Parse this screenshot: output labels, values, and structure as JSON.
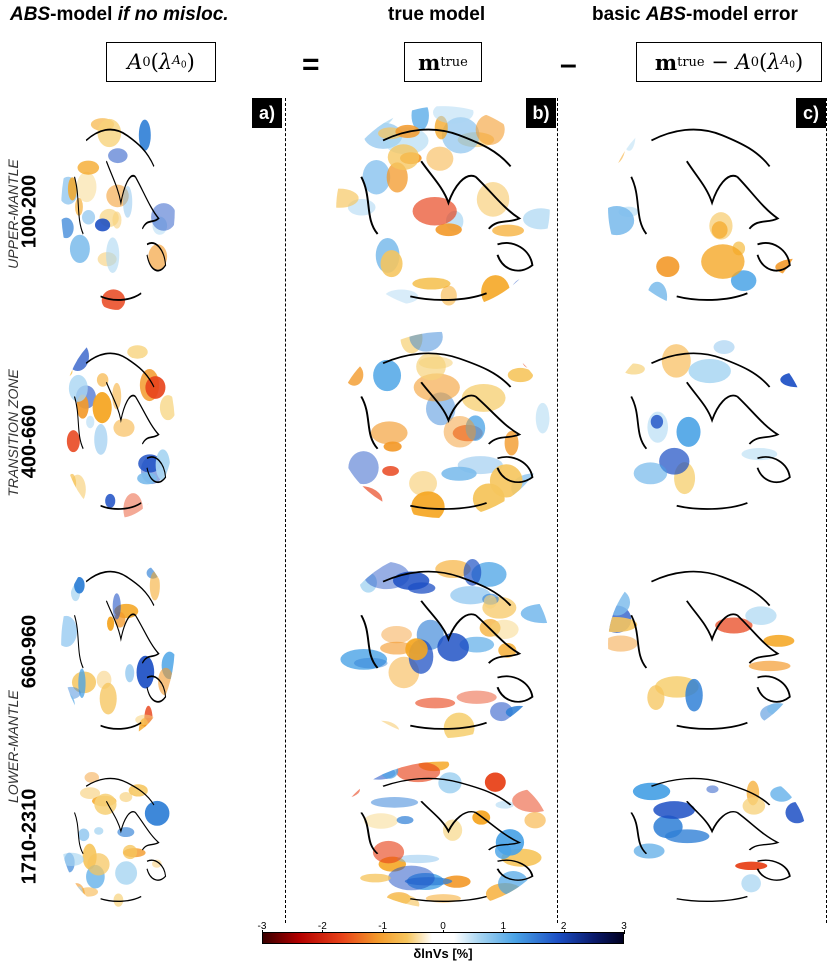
{
  "headers": {
    "col_a": "-model",
    "col_a_prefix": "ABS",
    "col_a_suffix": "if no misloc.",
    "col_b": "true model",
    "col_c_prefix": "basic ",
    "col_c_abs": "ABS",
    "col_c_suffix": "-model error"
  },
  "formulas": {
    "a": "A₀(λ^{A₀})",
    "b": "m^{true}",
    "c": "m^{true} − A₀(λ^{A₀})"
  },
  "operators": {
    "equals": "=",
    "minus": "–"
  },
  "panel_labels": [
    "a)",
    "b)",
    "c)"
  ],
  "regions": {
    "upper": "UPPER-MANTLE",
    "transition": "TRANSITION ZONE",
    "lower": "LOWER-MANTLE"
  },
  "depths": [
    "100-200",
    "400-660",
    "660-960",
    "1710-2310"
  ],
  "colorbar": {
    "ticks": [
      "-3",
      "-2",
      "-1",
      "0",
      "1",
      "2",
      "3"
    ],
    "label": "δlnVs  [%]"
  }
}
